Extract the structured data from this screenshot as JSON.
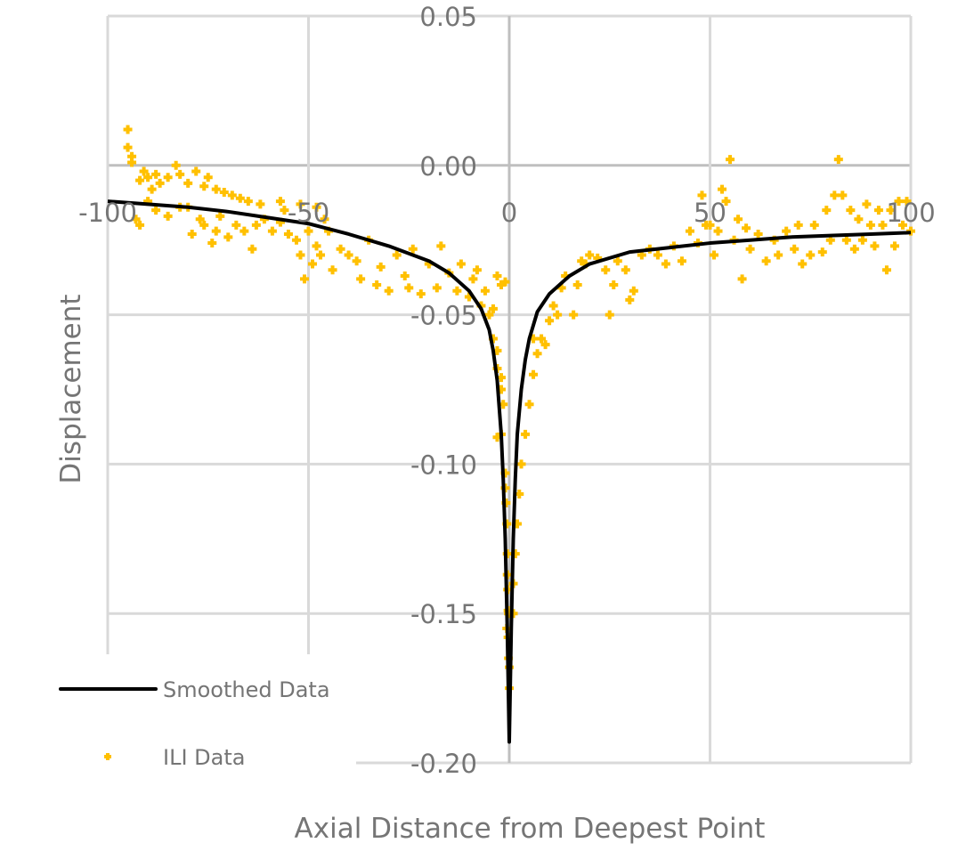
{
  "chart_data": {
    "type": "scatter",
    "title": "",
    "xlabel": "Axial Distance from Deepest Point",
    "ylabel": "Displacement",
    "xlim": [
      -100,
      100
    ],
    "ylim": [
      -0.2,
      0.05
    ],
    "grid": true,
    "legend_position": "bottom-left",
    "x_ticks": [
      "-100",
      "-50",
      "0",
      "50",
      "100"
    ],
    "y_ticks": [
      "0.05",
      "0.00",
      "-0.05",
      "-0.10",
      "-0.15",
      "-0.20"
    ],
    "colors": {
      "smoothed": "#000000",
      "ili": "#FFC000",
      "grid": "#d9d9d9",
      "text": "#757575"
    },
    "series": [
      {
        "name": "Smoothed Data",
        "type": "line",
        "points": [
          [
            -100,
            -0.012
          ],
          [
            -90,
            -0.013
          ],
          [
            -80,
            -0.014
          ],
          [
            -70,
            -0.0155
          ],
          [
            -60,
            -0.0175
          ],
          [
            -50,
            -0.0195
          ],
          [
            -40,
            -0.023
          ],
          [
            -30,
            -0.027
          ],
          [
            -20,
            -0.032
          ],
          [
            -15,
            -0.036
          ],
          [
            -10,
            -0.042
          ],
          [
            -7,
            -0.048
          ],
          [
            -5,
            -0.055
          ],
          [
            -4,
            -0.062
          ],
          [
            -3,
            -0.072
          ],
          [
            -2,
            -0.09
          ],
          [
            -1.5,
            -0.105
          ],
          [
            -1,
            -0.125
          ],
          [
            -0.5,
            -0.155
          ],
          [
            0,
            -0.193
          ],
          [
            0.5,
            -0.155
          ],
          [
            1,
            -0.125
          ],
          [
            1.5,
            -0.105
          ],
          [
            2,
            -0.09
          ],
          [
            3,
            -0.075
          ],
          [
            4,
            -0.065
          ],
          [
            5,
            -0.058
          ],
          [
            7,
            -0.049
          ],
          [
            10,
            -0.043
          ],
          [
            15,
            -0.037
          ],
          [
            20,
            -0.033
          ],
          [
            30,
            -0.029
          ],
          [
            40,
            -0.0275
          ],
          [
            50,
            -0.026
          ],
          [
            60,
            -0.025
          ],
          [
            70,
            -0.024
          ],
          [
            80,
            -0.0235
          ],
          [
            90,
            -0.023
          ],
          [
            100,
            -0.0225
          ]
        ]
      },
      {
        "name": "ILI Data",
        "type": "scatter",
        "points": [
          [
            -95,
            0.012
          ],
          [
            -95,
            0.006
          ],
          [
            -94,
            0.003
          ],
          [
            -94,
            0.001
          ],
          [
            -92,
            -0.005
          ],
          [
            -91,
            -0.002
          ],
          [
            -90,
            -0.004
          ],
          [
            -89,
            -0.008
          ],
          [
            -88,
            -0.003
          ],
          [
            -87,
            -0.006
          ],
          [
            -85,
            -0.004
          ],
          [
            -83,
            0.0
          ],
          [
            -82,
            -0.003
          ],
          [
            -80,
            -0.006
          ],
          [
            -78,
            -0.002
          ],
          [
            -76,
            -0.007
          ],
          [
            -75,
            -0.004
          ],
          [
            -73,
            -0.008
          ],
          [
            -71,
            -0.009
          ],
          [
            -69,
            -0.01
          ],
          [
            -67,
            -0.011
          ],
          [
            -65,
            -0.012
          ],
          [
            -62,
            -0.013
          ],
          [
            -93,
            -0.018
          ],
          [
            -92,
            -0.02
          ],
          [
            -90,
            -0.012
          ],
          [
            -88,
            -0.015
          ],
          [
            -85,
            -0.017
          ],
          [
            -82,
            -0.014
          ],
          [
            -80,
            -0.014
          ],
          [
            -79,
            -0.023
          ],
          [
            -77,
            -0.018
          ],
          [
            -76,
            -0.02
          ],
          [
            -74,
            -0.026
          ],
          [
            -73,
            -0.022
          ],
          [
            -72,
            -0.017
          ],
          [
            -70,
            -0.024
          ],
          [
            -68,
            -0.02
          ],
          [
            -66,
            -0.022
          ],
          [
            -64,
            -0.028
          ],
          [
            -63,
            -0.02
          ],
          [
            -61,
            -0.018
          ],
          [
            -59,
            -0.022
          ],
          [
            -57,
            -0.019
          ],
          [
            -55,
            -0.023
          ],
          [
            -53,
            -0.025
          ],
          [
            -52,
            -0.03
          ],
          [
            -51,
            -0.038
          ],
          [
            -50,
            -0.022
          ],
          [
            -49,
            -0.033
          ],
          [
            -48,
            -0.027
          ],
          [
            -47,
            -0.03
          ],
          [
            -45,
            -0.022
          ],
          [
            -44,
            -0.035
          ],
          [
            -42,
            -0.028
          ],
          [
            -40,
            -0.03
          ],
          [
            -38,
            -0.032
          ],
          [
            -37,
            -0.038
          ],
          [
            -35,
            -0.025
          ],
          [
            -33,
            -0.04
          ],
          [
            -32,
            -0.034
          ],
          [
            -30,
            -0.042
          ],
          [
            -28,
            -0.03
          ],
          [
            -26,
            -0.037
          ],
          [
            -25,
            -0.041
          ],
          [
            -24,
            -0.028
          ],
          [
            -22,
            -0.043
          ],
          [
            -20,
            -0.033
          ],
          [
            -18,
            -0.041
          ],
          [
            -17,
            -0.027
          ],
          [
            -15,
            -0.036
          ],
          [
            -13,
            -0.042
          ],
          [
            -12,
            -0.033
          ],
          [
            -10,
            -0.044
          ],
          [
            -9,
            -0.038
          ],
          [
            -8,
            -0.035
          ],
          [
            -7,
            -0.047
          ],
          [
            -6,
            -0.042
          ],
          [
            -5,
            -0.05
          ],
          [
            -4,
            -0.048
          ],
          [
            -3,
            -0.037
          ],
          [
            -2,
            -0.04
          ],
          [
            -1,
            -0.039
          ],
          [
            -57,
            -0.012
          ],
          [
            -56,
            -0.015
          ],
          [
            -52,
            -0.013
          ],
          [
            -48,
            -0.014
          ],
          [
            -46,
            -0.018
          ],
          [
            -4,
            -0.058
          ],
          [
            -3,
            -0.062
          ],
          [
            -3,
            -0.068
          ],
          [
            -2,
            -0.071
          ],
          [
            -2,
            -0.075
          ],
          [
            -1.5,
            -0.08
          ],
          [
            -3,
            -0.091
          ],
          [
            -2,
            -0.09
          ],
          [
            -1,
            -0.103
          ],
          [
            -1,
            -0.108
          ],
          [
            -0.8,
            -0.113
          ],
          [
            -0.6,
            -0.12
          ],
          [
            -0.5,
            -0.13
          ],
          [
            -0.5,
            -0.137
          ],
          [
            -0.4,
            -0.142
          ],
          [
            -0.3,
            -0.149
          ],
          [
            -0.6,
            -0.155
          ],
          [
            -0.3,
            -0.158
          ],
          [
            -0.2,
            -0.165
          ],
          [
            0,
            -0.168
          ],
          [
            0,
            -0.175
          ],
          [
            -0.2,
            -0.15
          ],
          [
            1,
            -0.15
          ],
          [
            1,
            -0.14
          ],
          [
            1.5,
            -0.13
          ],
          [
            2,
            -0.12
          ],
          [
            2.5,
            -0.11
          ],
          [
            3,
            -0.1
          ],
          [
            4,
            -0.09
          ],
          [
            5,
            -0.08
          ],
          [
            6,
            -0.07
          ],
          [
            7,
            -0.063
          ],
          [
            6,
            -0.058
          ],
          [
            8,
            -0.058
          ],
          [
            9,
            -0.06
          ],
          [
            10,
            -0.052
          ],
          [
            11,
            -0.047
          ],
          [
            12,
            -0.05
          ],
          [
            13,
            -0.041
          ],
          [
            14,
            -0.037
          ],
          [
            16,
            -0.05
          ],
          [
            17,
            -0.04
          ],
          [
            18,
            -0.032
          ],
          [
            19,
            -0.033
          ],
          [
            20,
            -0.03
          ],
          [
            22,
            -0.031
          ],
          [
            24,
            -0.035
          ],
          [
            25,
            -0.05
          ],
          [
            26,
            -0.04
          ],
          [
            27,
            -0.032
          ],
          [
            29,
            -0.035
          ],
          [
            30,
            -0.045
          ],
          [
            31,
            -0.042
          ],
          [
            33,
            -0.03
          ],
          [
            35,
            -0.028
          ],
          [
            37,
            -0.03
          ],
          [
            39,
            -0.033
          ],
          [
            41,
            -0.027
          ],
          [
            43,
            -0.032
          ],
          [
            45,
            -0.022
          ],
          [
            47,
            -0.026
          ],
          [
            48,
            -0.01
          ],
          [
            49,
            -0.02
          ],
          [
            50,
            -0.02
          ],
          [
            51,
            -0.03
          ],
          [
            52,
            -0.022
          ],
          [
            53,
            -0.008
          ],
          [
            54,
            -0.012
          ],
          [
            55,
            0.002
          ],
          [
            56,
            -0.025
          ],
          [
            57,
            -0.018
          ],
          [
            58,
            -0.038
          ],
          [
            59,
            -0.021
          ],
          [
            60,
            -0.028
          ],
          [
            62,
            -0.023
          ],
          [
            64,
            -0.032
          ],
          [
            66,
            -0.025
          ],
          [
            67,
            -0.03
          ],
          [
            69,
            -0.022
          ],
          [
            71,
            -0.028
          ],
          [
            72,
            -0.02
          ],
          [
            73,
            -0.033
          ],
          [
            75,
            -0.03
          ],
          [
            76,
            -0.02
          ],
          [
            78,
            -0.029
          ],
          [
            79,
            -0.015
          ],
          [
            80,
            -0.025
          ],
          [
            81,
            -0.01
          ],
          [
            82,
            0.002
          ],
          [
            83,
            -0.01
          ],
          [
            84,
            -0.025
          ],
          [
            85,
            -0.015
          ],
          [
            86,
            -0.028
          ],
          [
            87,
            -0.018
          ],
          [
            88,
            -0.025
          ],
          [
            89,
            -0.013
          ],
          [
            90,
            -0.02
          ],
          [
            91,
            -0.027
          ],
          [
            92,
            -0.015
          ],
          [
            93,
            -0.02
          ],
          [
            94,
            -0.035
          ],
          [
            95,
            -0.015
          ],
          [
            96,
            -0.027
          ],
          [
            97,
            -0.012
          ],
          [
            98,
            -0.02
          ],
          [
            99,
            -0.012
          ],
          [
            100,
            -0.022
          ]
        ]
      }
    ]
  }
}
